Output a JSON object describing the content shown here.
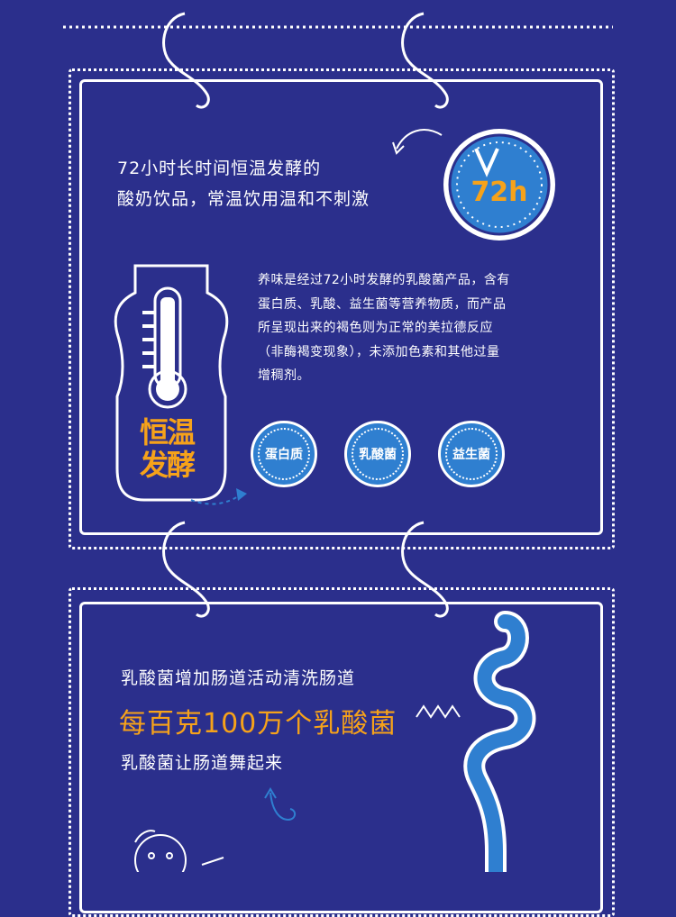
{
  "section1": {
    "headline_line1": "72小时长时间恒温发酵的",
    "headline_line2": "酸奶饮品，常温饮用温和不刺激",
    "clock_label": "72h",
    "bottle_label_line1": "恒温",
    "bottle_label_line2": "发酵",
    "description_lines": [
      "养味是经过72小时发酵的乳酸菌产品，含有",
      "蛋白质、乳酸、益生菌等营养物质，而产品",
      "所呈现出来的褐色则为正常的美拉德反应",
      "（非酶褐变现象），未添加色素和其他过量",
      "增稠剂。"
    ],
    "badges": [
      "蛋白质",
      "乳酸菌",
      "益生菌"
    ]
  },
  "section2": {
    "line1": "乳酸菌增加肠道活动清洗肠道",
    "highlight": "每百克100万个乳酸菌",
    "line3": "乳酸菌让肠道舞起来"
  },
  "colors": {
    "background": "#2b2f8c",
    "accent_orange": "#f6a21a",
    "badge_blue": "#2f7fd0",
    "clock_blue": "#2f7fd0"
  }
}
